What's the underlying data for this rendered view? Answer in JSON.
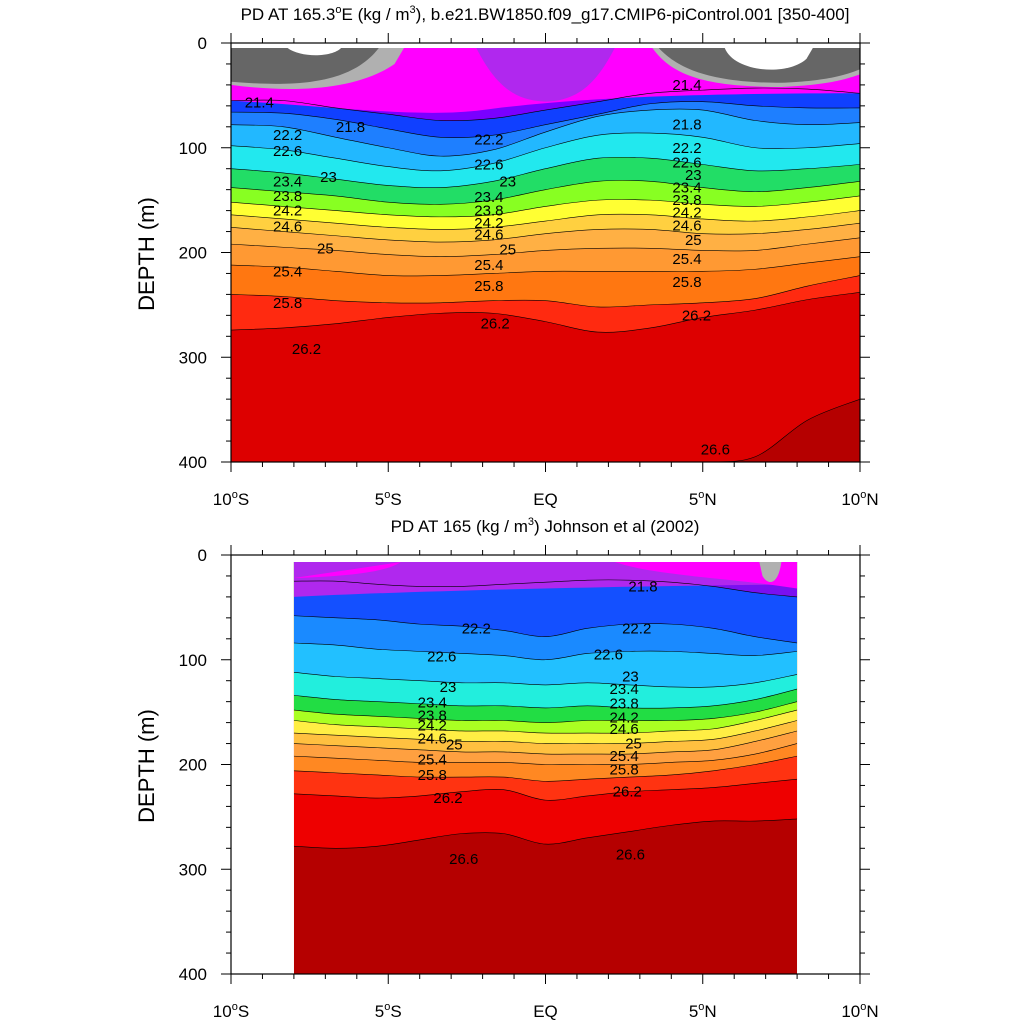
{
  "chart_data": [
    {
      "type": "contour",
      "title": {
        "prefix": "PD AT 165.3",
        "sup1": "o",
        "mid": "E (kg / m",
        "sup2": "3",
        "suffix": "), b.e21.BW1850.f09_g17.CMIP6-piControl.001 [350-400]"
      },
      "ylabel": "DEPTH (m)",
      "xlim": [
        -10,
        10
      ],
      "ylim": [
        400,
        0
      ],
      "x_ticks": [
        {
          "x": -10,
          "label": "10",
          "deg": "o",
          "hemi": "S"
        },
        {
          "x": -5,
          "label": "5",
          "deg": "o",
          "hemi": "S"
        },
        {
          "x": 0,
          "label": "EQ",
          "deg": "",
          "hemi": ""
        },
        {
          "x": 5,
          "label": "5",
          "deg": "o",
          "hemi": "N"
        },
        {
          "x": 10,
          "label": "10",
          "deg": "o",
          "hemi": "N"
        }
      ],
      "y_ticks": [
        0,
        100,
        200,
        300,
        400
      ],
      "isopycnals": [
        {
          "value": 21.4,
          "depth": [
            55,
            55,
            62,
            68,
            74,
            72,
            64,
            56,
            48,
            45,
            43,
            44,
            48
          ]
        },
        {
          "value": 21.8,
          "depth": [
            66,
            67,
            73,
            82,
            90,
            88,
            78,
            68,
            58,
            56,
            60,
            62,
            62
          ]
        },
        {
          "value": 22.2,
          "depth": [
            78,
            80,
            90,
            100,
            108,
            102,
            85,
            70,
            64,
            64,
            74,
            78,
            76
          ]
        },
        {
          "value": 22.6,
          "depth": [
            98,
            102,
            110,
            118,
            122,
            115,
            100,
            88,
            86,
            90,
            100,
            100,
            96
          ]
        },
        {
          "value": 23.0,
          "depth": [
            120,
            124,
            130,
            136,
            138,
            132,
            120,
            110,
            110,
            116,
            122,
            120,
            116
          ]
        },
        {
          "value": 23.4,
          "depth": [
            138,
            142,
            146,
            152,
            154,
            150,
            140,
            132,
            132,
            138,
            142,
            138,
            132
          ]
        },
        {
          "value": 23.8,
          "depth": [
            152,
            156,
            160,
            164,
            166,
            164,
            156,
            150,
            150,
            154,
            156,
            152,
            146
          ]
        },
        {
          "value": 24.2,
          "depth": [
            164,
            168,
            172,
            176,
            178,
            176,
            170,
            164,
            164,
            168,
            170,
            166,
            160
          ]
        },
        {
          "value": 24.6,
          "depth": [
            176,
            180,
            184,
            188,
            190,
            188,
            182,
            178,
            178,
            182,
            182,
            178,
            172
          ]
        },
        {
          "value": 25.0,
          "depth": [
            192,
            195,
            198,
            202,
            204,
            202,
            198,
            196,
            196,
            198,
            198,
            192,
            186
          ]
        },
        {
          "value": 25.4,
          "depth": [
            212,
            214,
            218,
            222,
            222,
            220,
            218,
            218,
            218,
            218,
            216,
            210,
            204
          ]
        },
        {
          "value": 25.8,
          "depth": [
            240,
            242,
            246,
            248,
            248,
            246,
            246,
            252,
            250,
            248,
            244,
            232,
            222
          ]
        },
        {
          "value": 26.2,
          "depth": [
            274,
            272,
            268,
            262,
            258,
            258,
            266,
            276,
            272,
            262,
            255,
            245,
            238
          ]
        },
        {
          "value": 26.6,
          "depth": [
            400,
            400,
            400,
            400,
            400,
            400,
            400,
            400,
            400,
            400,
            395,
            360,
            340
          ]
        }
      ],
      "contour_labels": [
        {
          "x": -9.1,
          "depth": 57,
          "text": "21.4"
        },
        {
          "x": -6.2,
          "depth": 80,
          "text": "21.8"
        },
        {
          "x": -8.2,
          "depth": 88,
          "text": "22.2"
        },
        {
          "x": -8.2,
          "depth": 103,
          "text": "22.6"
        },
        {
          "x": -6.9,
          "depth": 128,
          "text": "23"
        },
        {
          "x": -8.2,
          "depth": 132,
          "text": "23.4"
        },
        {
          "x": -8.2,
          "depth": 146,
          "text": "23.8"
        },
        {
          "x": -8.2,
          "depth": 160,
          "text": "24.2"
        },
        {
          "x": -8.2,
          "depth": 175,
          "text": "24.6"
        },
        {
          "x": -7.0,
          "depth": 196,
          "text": "25"
        },
        {
          "x": -8.2,
          "depth": 218,
          "text": "25.4"
        },
        {
          "x": -8.2,
          "depth": 248,
          "text": "25.8"
        },
        {
          "x": -7.6,
          "depth": 292,
          "text": "26.2"
        },
        {
          "x": -1.8,
          "depth": 92,
          "text": "22.2"
        },
        {
          "x": -1.8,
          "depth": 116,
          "text": "22.6"
        },
        {
          "x": -1.2,
          "depth": 132,
          "text": "23"
        },
        {
          "x": -1.8,
          "depth": 147,
          "text": "23.4"
        },
        {
          "x": -1.8,
          "depth": 160,
          "text": "23.8"
        },
        {
          "x": -1.8,
          "depth": 172,
          "text": "24.2"
        },
        {
          "x": -1.8,
          "depth": 183,
          "text": "24.6"
        },
        {
          "x": -1.2,
          "depth": 197,
          "text": "25"
        },
        {
          "x": -1.8,
          "depth": 212,
          "text": "25.4"
        },
        {
          "x": -1.8,
          "depth": 232,
          "text": "25.8"
        },
        {
          "x": -1.6,
          "depth": 268,
          "text": "26.2"
        },
        {
          "x": 4.5,
          "depth": 40,
          "text": "21.4"
        },
        {
          "x": 4.5,
          "depth": 78,
          "text": "21.8"
        },
        {
          "x": 4.5,
          "depth": 100,
          "text": "22.2"
        },
        {
          "x": 4.5,
          "depth": 114,
          "text": "22.6"
        },
        {
          "x": 4.7,
          "depth": 126,
          "text": "23"
        },
        {
          "x": 4.5,
          "depth": 138,
          "text": "23.4"
        },
        {
          "x": 4.5,
          "depth": 150,
          "text": "23.8"
        },
        {
          "x": 4.5,
          "depth": 162,
          "text": "24.2"
        },
        {
          "x": 4.5,
          "depth": 174,
          "text": "24.6"
        },
        {
          "x": 4.7,
          "depth": 188,
          "text": "25"
        },
        {
          "x": 4.5,
          "depth": 206,
          "text": "25.4"
        },
        {
          "x": 4.5,
          "depth": 228,
          "text": "25.8"
        },
        {
          "x": 4.8,
          "depth": 260,
          "text": "26.2"
        },
        {
          "x": 5.4,
          "depth": 388,
          "text": "26.6"
        }
      ]
    },
    {
      "type": "contour",
      "title": {
        "prefix": "PD AT 165 (kg / m",
        "sup1": "3",
        "mid": ") Johnson et al (2002)",
        "sup2": "",
        "suffix": ""
      },
      "ylabel": "DEPTH (m)",
      "xlim": [
        -10,
        10
      ],
      "ylim": [
        400,
        0
      ],
      "data_xlim": [
        -8,
        8
      ],
      "x_ticks": [
        {
          "x": -10,
          "label": "10",
          "deg": "o",
          "hemi": "S"
        },
        {
          "x": -5,
          "label": "5",
          "deg": "o",
          "hemi": "S"
        },
        {
          "x": 0,
          "label": "EQ",
          "deg": "",
          "hemi": ""
        },
        {
          "x": 5,
          "label": "5",
          "deg": "o",
          "hemi": "N"
        },
        {
          "x": 10,
          "label": "10",
          "deg": "o",
          "hemi": "N"
        }
      ],
      "y_ticks": [
        0,
        100,
        200,
        300,
        400
      ],
      "isopycnals": [
        {
          "value": 21.8,
          "depth": [
            25,
            25,
            28,
            30,
            30,
            28,
            26,
            24,
            24,
            26,
            30,
            36,
            40
          ]
        },
        {
          "value": 22.2,
          "depth": [
            58,
            60,
            62,
            66,
            68,
            72,
            78,
            70,
            66,
            66,
            70,
            78,
            84
          ]
        },
        {
          "value": 22.6,
          "depth": [
            84,
            86,
            90,
            92,
            94,
            96,
            100,
            94,
            92,
            92,
            94,
            96,
            92
          ]
        },
        {
          "value": 23.0,
          "depth": [
            112,
            116,
            118,
            120,
            122,
            122,
            124,
            122,
            124,
            126,
            126,
            122,
            114
          ]
        },
        {
          "value": 23.4,
          "depth": [
            134,
            138,
            140,
            142,
            144,
            144,
            146,
            144,
            146,
            146,
            144,
            138,
            128
          ]
        },
        {
          "value": 23.8,
          "depth": [
            148,
            152,
            154,
            156,
            158,
            158,
            160,
            158,
            158,
            158,
            156,
            150,
            140
          ]
        },
        {
          "value": 24.2,
          "depth": [
            158,
            162,
            164,
            166,
            168,
            168,
            170,
            170,
            170,
            168,
            166,
            158,
            148
          ]
        },
        {
          "value": 24.6,
          "depth": [
            170,
            172,
            174,
            176,
            178,
            178,
            180,
            180,
            180,
            178,
            176,
            168,
            158
          ]
        },
        {
          "value": 25.0,
          "depth": [
            180,
            182,
            184,
            186,
            188,
            188,
            190,
            190,
            190,
            188,
            186,
            178,
            168
          ]
        },
        {
          "value": 25.4,
          "depth": [
            192,
            194,
            196,
            198,
            198,
            198,
            200,
            200,
            200,
            198,
            196,
            190,
            180
          ]
        },
        {
          "value": 25.8,
          "depth": [
            206,
            208,
            210,
            212,
            212,
            212,
            216,
            214,
            212,
            210,
            206,
            200,
            192
          ]
        },
        {
          "value": 26.2,
          "depth": [
            228,
            230,
            232,
            230,
            226,
            224,
            234,
            230,
            226,
            224,
            222,
            218,
            214
          ]
        },
        {
          "value": 26.6,
          "depth": [
            278,
            280,
            278,
            272,
            266,
            266,
            276,
            270,
            264,
            258,
            254,
            254,
            252
          ]
        }
      ],
      "contour_labels": [
        {
          "x": -2.2,
          "depth": 70,
          "text": "22.2"
        },
        {
          "x": -3.3,
          "depth": 97,
          "text": "22.6"
        },
        {
          "x": -3.1,
          "depth": 126,
          "text": "23"
        },
        {
          "x": -3.6,
          "depth": 141,
          "text": "23.4"
        },
        {
          "x": -3.6,
          "depth": 153,
          "text": "23.8"
        },
        {
          "x": -3.6,
          "depth": 163,
          "text": "24.2"
        },
        {
          "x": -3.6,
          "depth": 175,
          "text": "24.6"
        },
        {
          "x": -2.9,
          "depth": 181,
          "text": "25"
        },
        {
          "x": -3.6,
          "depth": 195,
          "text": "25.4"
        },
        {
          "x": -3.6,
          "depth": 210,
          "text": "25.8"
        },
        {
          "x": -3.1,
          "depth": 232,
          "text": "26.2"
        },
        {
          "x": -2.6,
          "depth": 290,
          "text": "26.6"
        },
        {
          "x": 3.1,
          "depth": 30,
          "text": "21.8"
        },
        {
          "x": 2.9,
          "depth": 70,
          "text": "22.2"
        },
        {
          "x": 2.0,
          "depth": 95,
          "text": "22.6"
        },
        {
          "x": 2.7,
          "depth": 116,
          "text": "23"
        },
        {
          "x": 2.5,
          "depth": 128,
          "text": "23.4"
        },
        {
          "x": 2.5,
          "depth": 142,
          "text": "23.8"
        },
        {
          "x": 2.5,
          "depth": 155,
          "text": "24.2"
        },
        {
          "x": 2.5,
          "depth": 166,
          "text": "24.6"
        },
        {
          "x": 2.8,
          "depth": 180,
          "text": "25"
        },
        {
          "x": 2.5,
          "depth": 192,
          "text": "25.4"
        },
        {
          "x": 2.5,
          "depth": 205,
          "text": "25.8"
        },
        {
          "x": 2.6,
          "depth": 226,
          "text": "26.2"
        },
        {
          "x": 2.7,
          "depth": 286,
          "text": "26.6"
        }
      ]
    }
  ],
  "colors": {
    "grey_dark": "#666666",
    "grey_light": "#b0b0b0",
    "magenta": "#ff00ff",
    "purple": "#aa22ee",
    "violet": "#6a00ff",
    "blue": "#0022ff",
    "band_fill": [
      "#0a44ff",
      "#1466ff",
      "#1a88ff",
      "#22a8ff",
      "#22c8ff",
      "#22e8ff",
      "#20f0e0",
      "#22ee99",
      "#22dd22",
      "#77ee22",
      "#ccff22",
      "#ffff22",
      "#ffdd33",
      "#ffbb44",
      "#ffa540",
      "#ff9933",
      "#ff8822",
      "#ff5511",
      "#ff1111",
      "#e00000",
      "#cc0000",
      "#bb0000"
    ]
  }
}
